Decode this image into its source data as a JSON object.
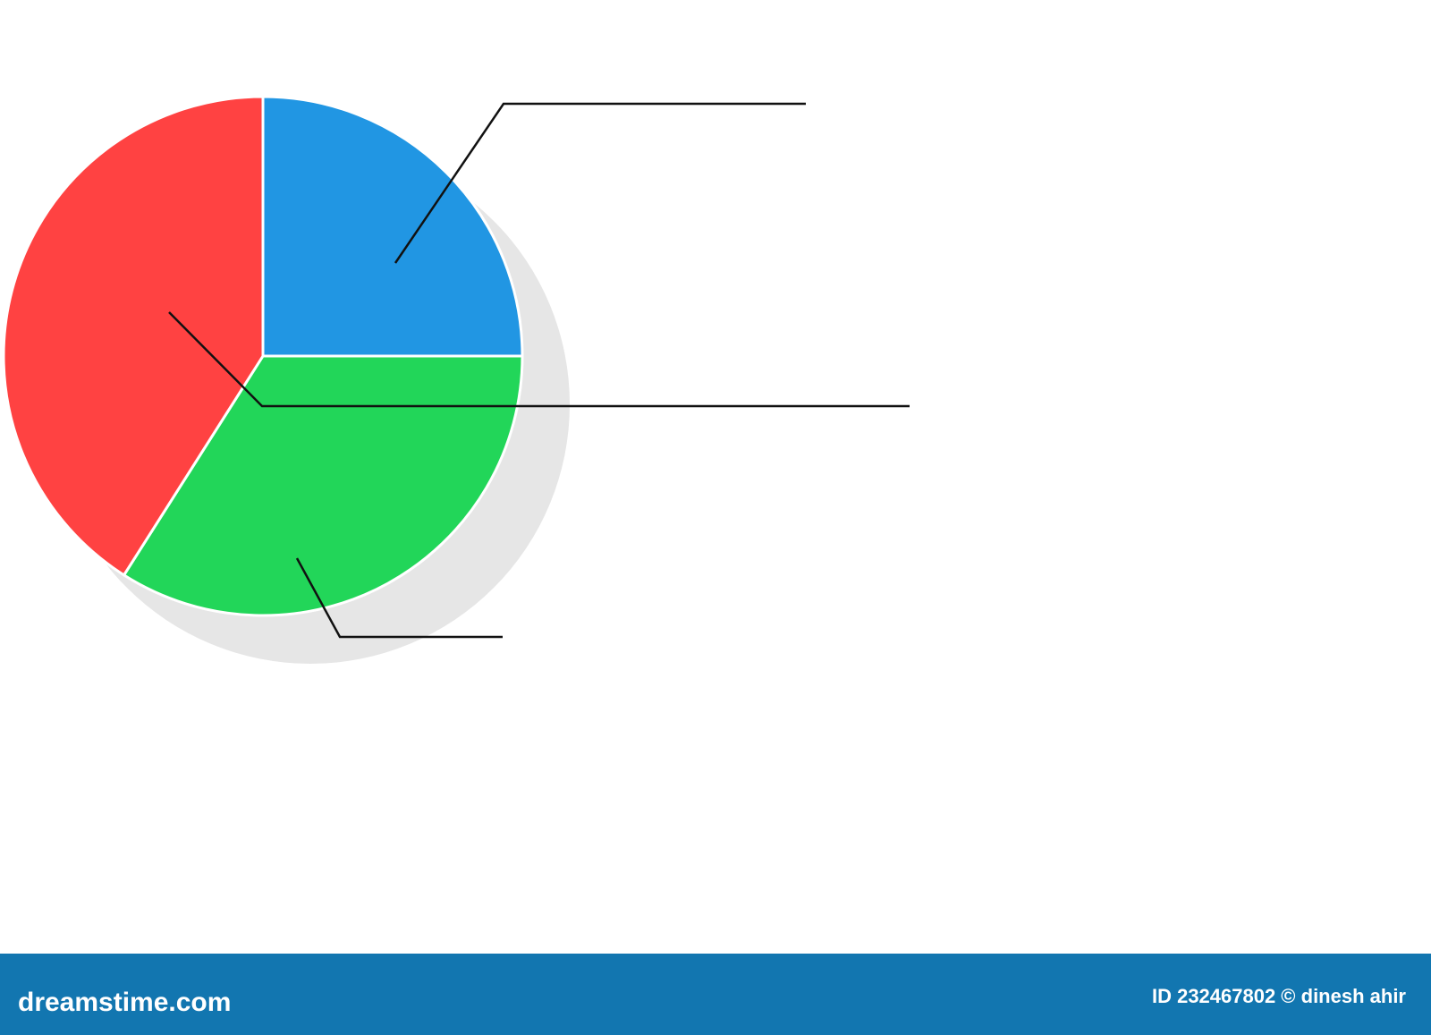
{
  "chart_data": {
    "type": "pie",
    "values": [
      25,
      34,
      41
    ],
    "colors": [
      "#2196e3",
      "#22d659",
      "#ff4242"
    ]
  },
  "footer": {
    "site": "dreamstime.com",
    "credit": "ID 232467802 © dinesh ahir"
  }
}
